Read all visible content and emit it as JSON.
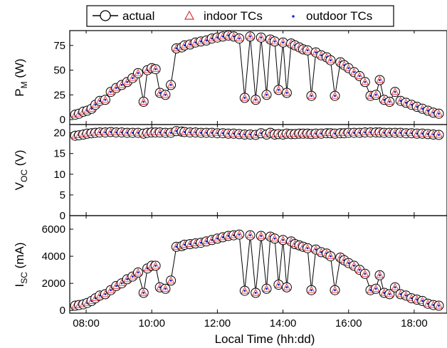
{
  "chart_data": {
    "type": "scatter",
    "x_axis": {
      "label": "Local Time (hh:dd)",
      "range": [
        "07:30",
        "19:00"
      ],
      "ticks": [
        "08:00",
        "10:00",
        "12:00",
        "14:00",
        "16:00",
        "18:00"
      ]
    },
    "legend": {
      "placement": "top",
      "entries": [
        {
          "label": "actual",
          "marker": "line-circle"
        },
        {
          "label": "indoor TCs",
          "marker": "triangle",
          "color": "#e0303a"
        },
        {
          "label": "outdoor TCs",
          "marker": "dot",
          "color": "#1a2bd0"
        }
      ]
    },
    "panels": [
      {
        "id": "pm",
        "ylabel": "P",
        "ylabel_sub": "M",
        "ylabel_unit": " (W)",
        "ylim": [
          -5,
          90
        ],
        "yticks": [
          "0",
          "25",
          "50",
          "75"
        ]
      },
      {
        "id": "voc",
        "ylabel": "V",
        "ylabel_sub": "OC",
        "ylabel_unit": " (V)",
        "ylim": [
          0,
          22
        ],
        "yticks": [
          "0",
          "5",
          "10",
          "15",
          "20"
        ]
      },
      {
        "id": "isc",
        "ylabel": "I",
        "ylabel_sub": "SC",
        "ylabel_unit": " (mA)",
        "ylim": [
          -200,
          7000
        ],
        "yticks": [
          "0",
          "2000",
          "4000",
          "6000"
        ]
      }
    ],
    "series": {
      "time": [
        "07:40",
        "07:47",
        "07:55",
        "08:02",
        "08:10",
        "08:17",
        "08:25",
        "08:35",
        "08:45",
        "08:55",
        "09:05",
        "09:15",
        "09:25",
        "09:35",
        "09:45",
        "09:52",
        "10:00",
        "10:07",
        "10:15",
        "10:25",
        "10:35",
        "10:45",
        "10:55",
        "11:00",
        "11:10",
        "11:20",
        "11:30",
        "11:40",
        "11:50",
        "12:00",
        "12:10",
        "12:20",
        "12:30",
        "12:40",
        "12:50",
        "13:00",
        "13:10",
        "13:20",
        "13:30",
        "13:37",
        "13:45",
        "13:52",
        "14:00",
        "14:07",
        "14:15",
        "14:22",
        "14:30",
        "14:37",
        "14:45",
        "14:52",
        "15:00",
        "15:10",
        "15:20",
        "15:27",
        "15:35",
        "15:45",
        "15:52",
        "16:00",
        "16:10",
        "16:20",
        "16:30",
        "16:40",
        "16:50",
        "16:57",
        "17:05",
        "17:15",
        "17:25",
        "17:35",
        "17:45",
        "17:55",
        "18:05",
        "18:15",
        "18:25",
        "18:35",
        "18:45"
      ],
      "pm": [
        5,
        6,
        8,
        9,
        11,
        15,
        19,
        20,
        28,
        32,
        35,
        38,
        42,
        47,
        18,
        50,
        52,
        51,
        27,
        25,
        35,
        72,
        73,
        75,
        76,
        78,
        79,
        80,
        82,
        83,
        84,
        85,
        84,
        82,
        22,
        84,
        20,
        83,
        25,
        81,
        79,
        30,
        78,
        27,
        77,
        75,
        73,
        71,
        70,
        24,
        68,
        65,
        63,
        60,
        24,
        58,
        55,
        52,
        48,
        44,
        38,
        24,
        25,
        40,
        20,
        18,
        28,
        19,
        17,
        15,
        13,
        11,
        9,
        7,
        6
      ],
      "voc": [
        19.3,
        19.4,
        19.6,
        19.8,
        19.9,
        20.0,
        20.1,
        20.1,
        20.2,
        20.1,
        20.1,
        20.0,
        20.0,
        20.0,
        19.8,
        20.0,
        20.1,
        20.1,
        20.1,
        20.0,
        20.0,
        20.4,
        20.3,
        20.2,
        20.1,
        20.1,
        20.0,
        20.0,
        20.0,
        19.9,
        19.9,
        19.8,
        19.8,
        19.7,
        19.6,
        19.6,
        19.5,
        19.9,
        19.6,
        20.0,
        19.6,
        19.7,
        19.6,
        19.8,
        19.7,
        19.7,
        19.8,
        19.8,
        19.8,
        19.7,
        19.8,
        19.8,
        19.9,
        19.9,
        19.8,
        19.9,
        19.9,
        20.0,
        20.0,
        20.0,
        20.1,
        20.1,
        20.1,
        20.1,
        20.0,
        20.0,
        20.0,
        20.0,
        19.9,
        19.9,
        19.8,
        19.8,
        19.7,
        19.6,
        19.5
      ],
      "isc": [
        350,
        400,
        450,
        550,
        700,
        900,
        1100,
        1200,
        1500,
        1800,
        2000,
        2300,
        2500,
        2800,
        1300,
        3100,
        3300,
        3300,
        1700,
        1600,
        2200,
        4700,
        4750,
        4850,
        4900,
        4950,
        5000,
        5100,
        5200,
        5300,
        5400,
        5500,
        5550,
        5600,
        1450,
        5550,
        1300,
        5500,
        1600,
        5450,
        5300,
        1900,
        5200,
        1700,
        5100,
        4900,
        4800,
        4700,
        4600,
        1500,
        4500,
        4300,
        4200,
        4000,
        1500,
        3900,
        3700,
        3500,
        3300,
        3000,
        2700,
        1500,
        1600,
        2600,
        1300,
        1200,
        1700,
        1200,
        1100,
        900,
        800,
        700,
        500,
        400,
        350
      ]
    }
  }
}
